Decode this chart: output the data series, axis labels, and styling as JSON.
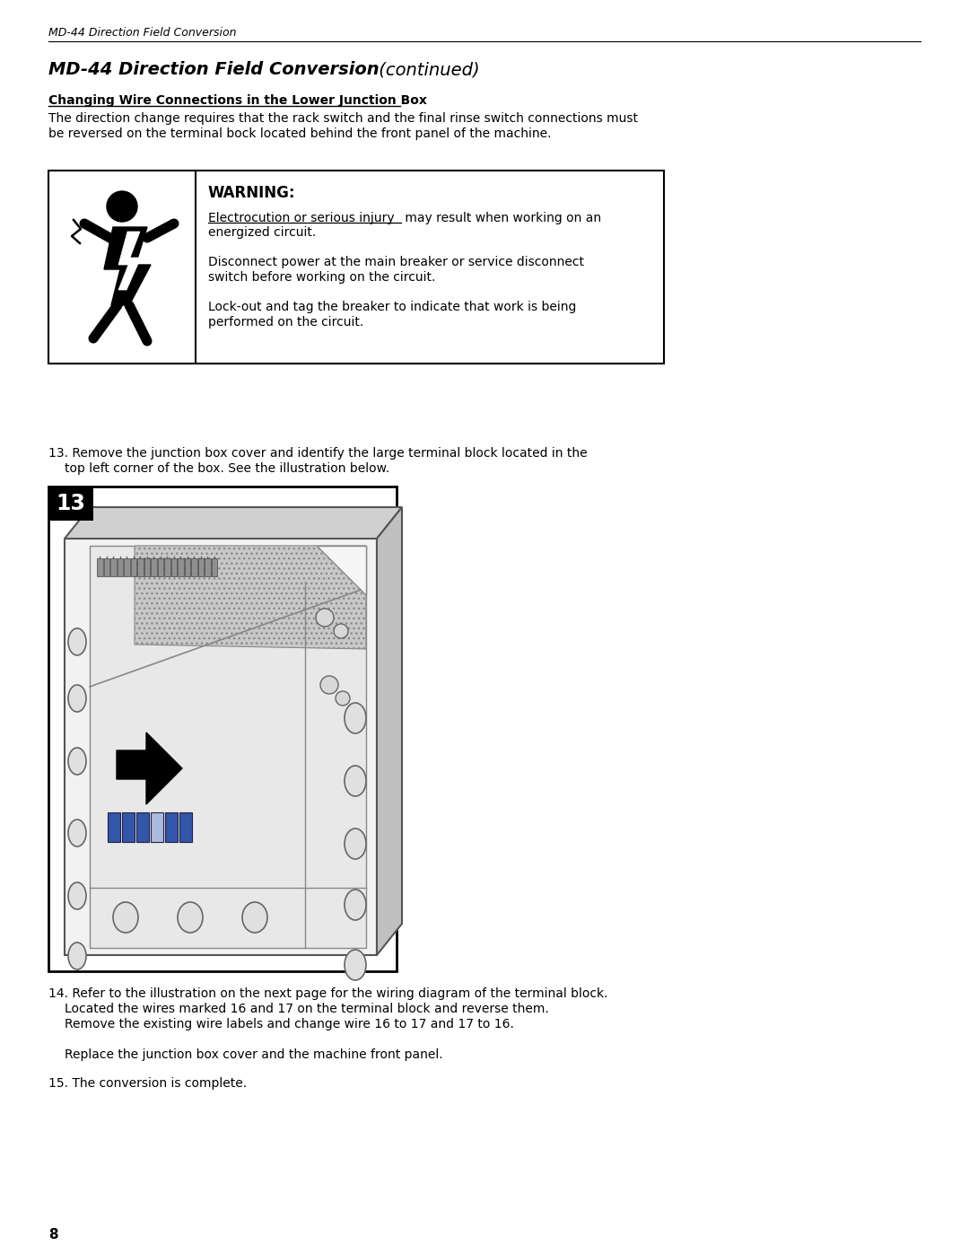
{
  "header_italic": "MD-44 Direction Field Conversion",
  "title_italic": "MD-44 Direction Field Conversion",
  "title_suffix": " (continued)",
  "section_heading": "Changing Wire Connections in the Lower Junction Box",
  "section_body_1": "The direction change requires that the rack switch and the final rinse switch connections must",
  "section_body_2": "be reversed on the terminal bock located behind the front panel of the machine.",
  "warning_title": "WARNING:",
  "warning_line1_underlined": "Electrocution or serious injury",
  "warning_line1_rest": " may result when working on an",
  "warning_line1b": "energized circuit.",
  "warning_line2a": "Disconnect power at the main breaker or service disconnect",
  "warning_line2b": "switch before working on the circuit.",
  "warning_line3a": "Lock-out and tag the breaker to indicate that work is being",
  "warning_line3b": "performed on the circuit.",
  "step13_line1": "13. Remove the junction box cover and identify the large terminal block located in the",
  "step13_line2": "top left corner of the box. See the illustration below.",
  "step14_line1": "14. Refer to the illustration on the next page for the wiring diagram of the terminal block.",
  "step14_line2": "Located the wires marked 16 and 17 on the terminal block and reverse them.",
  "step14_line3": "Remove the existing wire labels and change wire 16 to 17 and 17 to 16.",
  "step14_extra": "Replace the junction box cover and the machine front panel.",
  "step15_text": "15. The conversion is complete.",
  "page_number": "8",
  "bg_color": "#ffffff",
  "text_color": "#000000",
  "header_font_size": 9,
  "title_font_size": 14,
  "body_font_size": 10,
  "warning_title_font_size": 12,
  "step_font_size": 10
}
